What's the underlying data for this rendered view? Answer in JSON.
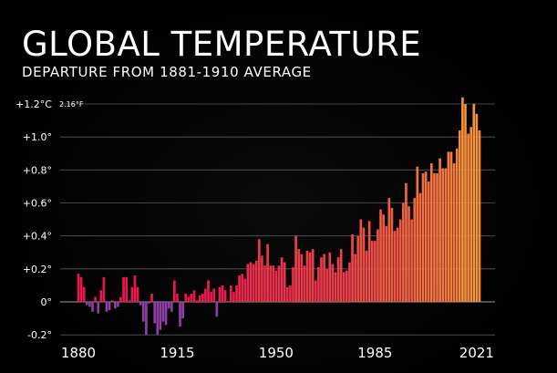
{
  "chart_data": {
    "type": "bar",
    "title": "GLOBAL TEMPERATURE",
    "subtitle": "DEPARTURE FROM 1881-1910 AVERAGE",
    "xlabel": "",
    "ylabel": "",
    "ylim": [
      -0.2,
      1.25
    ],
    "y_ticks": [
      {
        "value": 1.2,
        "label": "+1.2°C",
        "alt_label": "2.16°F"
      },
      {
        "value": 1.0,
        "label": "+1.0°"
      },
      {
        "value": 0.8,
        "label": "+0.8°"
      },
      {
        "value": 0.6,
        "label": "+0.6°"
      },
      {
        "value": 0.4,
        "label": "+0.4°"
      },
      {
        "value": 0.2,
        "label": "+0.2°"
      },
      {
        "value": 0.0,
        "label": "0°"
      },
      {
        "value": -0.2,
        "label": "-0.2°"
      }
    ],
    "x_ticks": [
      {
        "value": 1880,
        "label": "1880"
      },
      {
        "value": 1915,
        "label": "1915"
      },
      {
        "value": 1950,
        "label": "1950"
      },
      {
        "value": 1985,
        "label": "1985"
      },
      {
        "value": 2021,
        "label": "2021"
      }
    ],
    "grid": true,
    "colors": {
      "cool": "#8e3fa6",
      "warm_low": "#e8184f",
      "warm_high": "#f59e3a",
      "grid": "#5a5a5a",
      "zero_line": "#9a9a9a"
    },
    "start_year": 1880,
    "values": [
      0.17,
      0.15,
      0.09,
      -0.02,
      -0.03,
      -0.06,
      0.03,
      -0.07,
      0.07,
      0.15,
      -0.06,
      -0.05,
      0.01,
      -0.04,
      -0.03,
      0.03,
      0.15,
      0.15,
      0.01,
      0.09,
      0.16,
      0.09,
      -0.02,
      -0.12,
      -0.2,
      -0.01,
      0.05,
      -0.13,
      -0.2,
      -0.17,
      -0.12,
      -0.14,
      -0.04,
      -0.06,
      0.13,
      0.05,
      -0.15,
      -0.1,
      0.05,
      0.03,
      0.05,
      0.07,
      0.01,
      0.04,
      0.05,
      0.08,
      0.13,
      0.06,
      0.08,
      -0.09,
      0.09,
      0.1,
      0.07,
      0.0,
      0.1,
      0.06,
      0.1,
      0.16,
      0.17,
      0.14,
      0.23,
      0.24,
      0.23,
      0.25,
      0.38,
      0.28,
      0.22,
      0.35,
      0.22,
      0.22,
      0.19,
      0.22,
      0.27,
      0.24,
      0.09,
      0.1,
      0.21,
      0.4,
      0.32,
      0.29,
      0.22,
      0.31,
      0.3,
      0.32,
      0.13,
      0.21,
      0.27,
      0.29,
      0.2,
      0.3,
      0.23,
      0.18,
      0.27,
      0.32,
      0.18,
      0.19,
      0.24,
      0.41,
      0.29,
      0.4,
      0.5,
      0.45,
      0.31,
      0.49,
      0.37,
      0.37,
      0.44,
      0.56,
      0.53,
      0.46,
      0.63,
      0.57,
      0.43,
      0.45,
      0.5,
      0.6,
      0.72,
      0.58,
      0.5,
      0.63,
      0.82,
      0.66,
      0.78,
      0.79,
      0.73,
      0.84,
      0.78,
      0.78,
      0.87,
      0.81,
      0.81,
      0.91,
      0.91,
      0.84,
      0.93,
      1.04,
      1.24,
      1.2,
      1.02,
      1.06,
      1.2,
      1.14,
      1.04
    ]
  }
}
